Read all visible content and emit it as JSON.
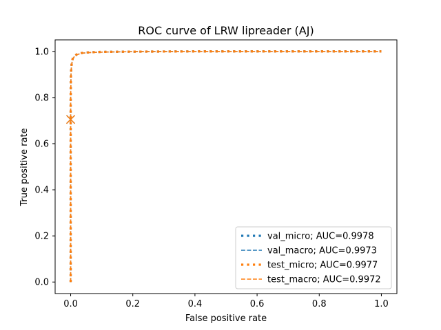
{
  "chart_data": {
    "type": "line",
    "title": "ROC curve of LRW lipreader (AJ)",
    "xlabel": "False positive rate",
    "ylabel": "True positive rate",
    "xlim": [
      -0.05,
      1.05
    ],
    "ylim": [
      -0.05,
      1.05
    ],
    "xticks": [
      0.0,
      0.2,
      0.4,
      0.6,
      0.8,
      1.0
    ],
    "yticks": [
      0.0,
      0.2,
      0.4,
      0.6,
      0.8,
      1.0
    ],
    "xtick_labels": [
      "0.0",
      "0.2",
      "0.4",
      "0.6",
      "0.8",
      "1.0"
    ],
    "ytick_labels": [
      "0.0",
      "0.2",
      "0.4",
      "0.6",
      "0.8",
      "1.0"
    ],
    "grid": false,
    "legend_position": "bottom-right",
    "series": [
      {
        "name": "val_micro; AUC=0.9978",
        "color": "#1f77b4",
        "style": "dotted",
        "x": [
          0.0,
          0.0,
          0.0,
          0.001,
          0.002,
          0.004,
          0.007,
          0.012,
          0.02,
          0.035,
          0.06,
          0.1,
          0.2,
          0.4,
          0.6,
          0.8,
          1.0
        ],
        "y": [
          0.0,
          0.5,
          0.8,
          0.9,
          0.93,
          0.955,
          0.97,
          0.98,
          0.987,
          0.993,
          0.996,
          0.998,
          0.999,
          1.0,
          1.0,
          1.0,
          1.0
        ]
      },
      {
        "name": "val_macro; AUC=0.9973",
        "color": "#1f77b4",
        "style": "dashed",
        "x": [
          0.0,
          0.0,
          0.0,
          0.001,
          0.002,
          0.004,
          0.007,
          0.012,
          0.02,
          0.035,
          0.06,
          0.1,
          0.2,
          0.4,
          0.6,
          0.8,
          1.0
        ],
        "y": [
          0.0,
          0.5,
          0.79,
          0.895,
          0.925,
          0.95,
          0.967,
          0.978,
          0.986,
          0.992,
          0.995,
          0.997,
          0.999,
          1.0,
          1.0,
          1.0,
          1.0
        ]
      },
      {
        "name": "test_micro; AUC=0.9977",
        "color": "#ff7f0e",
        "style": "dotted",
        "x": [
          0.0,
          0.0,
          0.0,
          0.001,
          0.002,
          0.004,
          0.007,
          0.012,
          0.02,
          0.035,
          0.06,
          0.1,
          0.2,
          0.4,
          0.6,
          0.8,
          1.0
        ],
        "y": [
          0.0,
          0.5,
          0.8,
          0.9,
          0.93,
          0.955,
          0.97,
          0.98,
          0.987,
          0.993,
          0.996,
          0.998,
          0.999,
          1.0,
          1.0,
          1.0,
          1.0
        ]
      },
      {
        "name": "test_macro; AUC=0.9972",
        "color": "#ff7f0e",
        "style": "dashed",
        "x": [
          0.0,
          0.0,
          0.0,
          0.001,
          0.002,
          0.004,
          0.007,
          0.012,
          0.02,
          0.035,
          0.06,
          0.1,
          0.2,
          0.4,
          0.6,
          0.8,
          1.0
        ],
        "y": [
          0.0,
          0.5,
          0.79,
          0.895,
          0.925,
          0.95,
          0.967,
          0.978,
          0.986,
          0.992,
          0.995,
          0.997,
          0.999,
          1.0,
          1.0,
          1.0,
          1.0
        ]
      }
    ],
    "markers": [
      {
        "x": 0.0,
        "y": 0.705,
        "symbol": "x",
        "color": "#1f77b4"
      },
      {
        "x": 0.0,
        "y": 0.705,
        "symbol": "x",
        "color": "#ff7f0e"
      }
    ]
  }
}
